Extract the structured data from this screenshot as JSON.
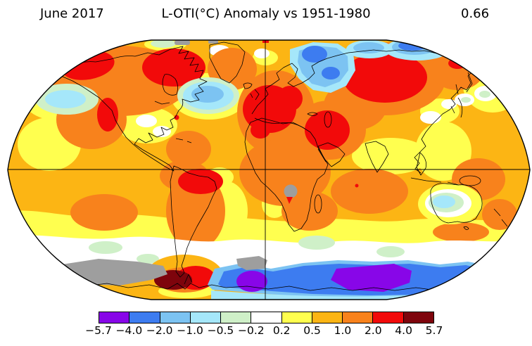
{
  "header": {
    "date": "June 2017",
    "title": "L-OTI(°C) Anomaly vs 1951-1980",
    "global_mean": "0.66"
  },
  "colorbar": {
    "tick_labels": [
      "−5.7",
      "−4.0",
      "−2.0",
      "−1.0",
      "−0.5",
      "−0.2",
      "0.2",
      "0.5",
      "1.0",
      "2.0",
      "4.0",
      "5.7"
    ],
    "segment_colors": [
      "#8806e8",
      "#3d7cf0",
      "#7cc3f2",
      "#a5e7fa",
      "#cff0c8",
      "#ffffff",
      "#ffff4f",
      "#fcb514",
      "#f8821c",
      "#f20a0a",
      "#7e040c"
    ],
    "missing_data_color": "#9e9e9e"
  },
  "chart_data": {
    "type": "heatmap",
    "title": "L-OTI(°C) Anomaly vs 1951-1980",
    "period": "June 2017",
    "baseline": "1951-1980",
    "units": "°C",
    "global_mean_anomaly": 0.66,
    "projection": "Robinson",
    "scale_boundaries": [
      -5.7,
      -4.0,
      -2.0,
      -1.0,
      -0.5,
      -0.2,
      0.2,
      0.5,
      1.0,
      2.0,
      4.0,
      5.7
    ],
    "scale_colors": [
      "#8806e8",
      "#3d7cf0",
      "#7cc3f2",
      "#a5e7fa",
      "#cff0c8",
      "#ffffff",
      "#ffff4f",
      "#fcb514",
      "#f8821c",
      "#f20a0a",
      "#7e040c"
    ],
    "legend_position": "bottom",
    "notable_regions": [
      {
        "region": "Alaska / northwest Canada",
        "anomaly_c": "+2 to +4"
      },
      {
        "region": "Northeastern Canada / Baffin region",
        "anomaly_c": "+2 to +4"
      },
      {
        "region": "North Pacific cool patch",
        "anomaly_c": "-1 to -0.5"
      },
      {
        "region": "North Atlantic cool blob",
        "anomaly_c": "-2 to -1"
      },
      {
        "region": "Western Europe / Mediterranean",
        "anomaly_c": "+2 to +4"
      },
      {
        "region": "Central Siberia",
        "anomaly_c": "+2 to +4"
      },
      {
        "region": "Barents / Kara Seas (Arctic)",
        "anomaly_c": "-4 to -2"
      },
      {
        "region": "Middle East",
        "anomaly_c": "+2 to +4"
      },
      {
        "region": "Northeast Brazil",
        "anomaly_c": "+2 to +4"
      },
      {
        "region": "Central Australia",
        "anomaly_c": "-1 to -0.2"
      },
      {
        "region": "Antarctic Peninsula / Weddell area",
        "anomaly_c": "+4 to +5.7"
      },
      {
        "region": "East Antarctica",
        "anomaly_c": "-5.7 to -2"
      },
      {
        "region": "Southern Ocean band",
        "anomaly_c": "-0.2 to +0.2"
      },
      {
        "region": "Parts of Antarctica and southwest Africa",
        "anomaly_c": "no data (gray)"
      }
    ]
  }
}
